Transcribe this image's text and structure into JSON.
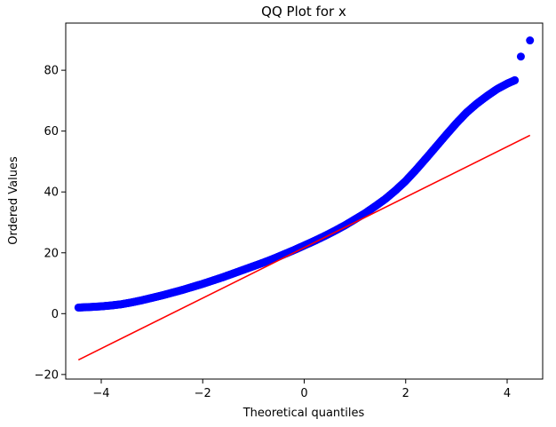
{
  "chart_data": {
    "type": "scatter",
    "title": "QQ Plot for x",
    "xlabel": "Theoretical quantiles",
    "ylabel": "Ordered Values",
    "xlim": [
      -4.7,
      4.7
    ],
    "ylim": [
      -21.5,
      95.5
    ],
    "xticks": [
      -4,
      -2,
      0,
      2,
      4
    ],
    "xtick_labels": [
      "−4",
      "−2",
      "0",
      "2",
      "4"
    ],
    "yticks": [
      -20,
      0,
      20,
      40,
      60,
      80
    ],
    "ytick_labels": [
      "−20",
      "0",
      "20",
      "40",
      "60",
      "80"
    ],
    "grid": false,
    "series": [
      {
        "kind": "points",
        "color": "#0000ff",
        "x": [
          -4.45,
          -4.2,
          -4.0,
          -3.8,
          -3.6,
          -3.4,
          -3.2,
          -3.0,
          -2.8,
          -2.6,
          -2.4,
          -2.2,
          -2.0,
          -1.8,
          -1.6,
          -1.4,
          -1.2,
          -1.0,
          -0.8,
          -0.6,
          -0.4,
          -0.2,
          0.0,
          0.2,
          0.4,
          0.6,
          0.8,
          1.0,
          1.2,
          1.4,
          1.6,
          1.8,
          2.0,
          2.2,
          2.4,
          2.6,
          2.8,
          3.0,
          3.2,
          3.4,
          3.6,
          3.8,
          4.0,
          4.15,
          4.27,
          4.45
        ],
        "y": [
          2.0,
          2.2,
          2.4,
          2.7,
          3.1,
          3.7,
          4.4,
          5.2,
          6.0,
          6.9,
          7.8,
          8.8,
          9.8,
          10.9,
          12.0,
          13.2,
          14.4,
          15.6,
          16.8,
          18.1,
          19.5,
          20.9,
          22.4,
          23.9,
          25.5,
          27.2,
          29.0,
          31.0,
          33.0,
          35.3,
          37.7,
          40.5,
          43.6,
          47.2,
          51.0,
          54.9,
          58.8,
          62.6,
          66.1,
          69.0,
          71.5,
          73.8,
          75.6,
          76.7,
          84.5,
          89.8
        ]
      },
      {
        "kind": "fit-line",
        "color": "#ff0000",
        "x": [
          -4.45,
          4.45
        ],
        "y": [
          -15.2,
          58.6
        ]
      }
    ]
  }
}
